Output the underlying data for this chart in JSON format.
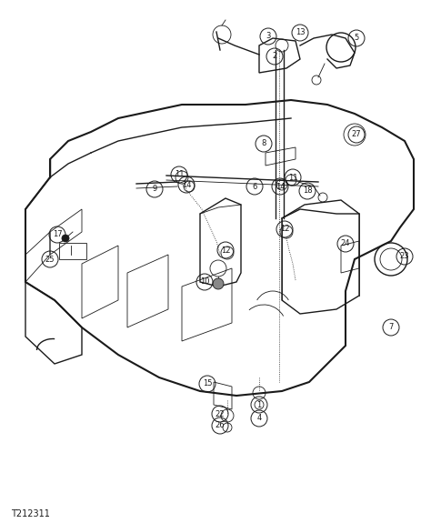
{
  "bg_color": "#ffffff",
  "line_color": "#1a1a1a",
  "fig_width": 4.74,
  "fig_height": 5.75,
  "dpi": 100,
  "footer_text": "T212311"
}
